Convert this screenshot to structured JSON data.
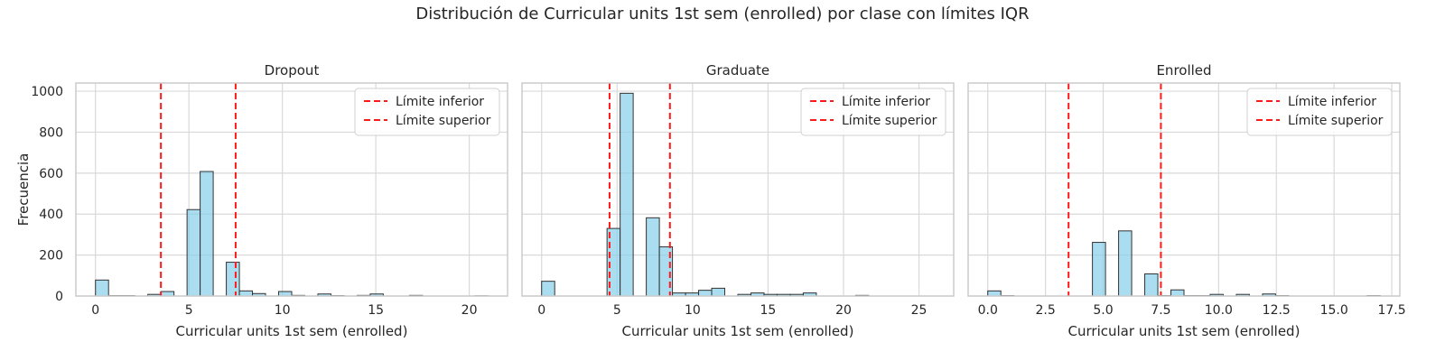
{
  "figure": {
    "title": "Distribución de Curricular units 1st sem (enrolled) por clase con límites IQR",
    "ylabel": "Frecuencia"
  },
  "colors": {
    "bar_fill": "#87CEEB",
    "bar_edge": "#333333",
    "limit_line": "#ff1a1a",
    "grid": "#d9d9d9",
    "spine": "#cccccc"
  },
  "chart_data": [
    {
      "type": "bar",
      "title": "Dropout",
      "xlabel": "Curricular units 1st sem (enrolled)",
      "ylabel": "Frecuencia",
      "xlim": [
        -1.05,
        22.05
      ],
      "ylim": [
        0,
        1040
      ],
      "xticks": [
        0,
        5,
        10,
        15,
        20
      ],
      "xtick_labels": [
        "0",
        "5",
        "10",
        "15",
        "20"
      ],
      "yticks": [
        0,
        200,
        400,
        600,
        800,
        1000
      ],
      "ytick_labels": [
        "0",
        "200",
        "400",
        "600",
        "800",
        "1000"
      ],
      "bin_width": 0.7,
      "bins": [
        {
          "x": 0,
          "value": 78
        },
        {
          "x": 0.7,
          "value": 2
        },
        {
          "x": 1.4,
          "value": 2
        },
        {
          "x": 2.8,
          "value": 8
        },
        {
          "x": 3.5,
          "value": 22
        },
        {
          "x": 4.9,
          "value": 422
        },
        {
          "x": 5.6,
          "value": 608
        },
        {
          "x": 7.0,
          "value": 165
        },
        {
          "x": 7.7,
          "value": 25
        },
        {
          "x": 8.4,
          "value": 12
        },
        {
          "x": 9.8,
          "value": 22
        },
        {
          "x": 10.5,
          "value": 3
        },
        {
          "x": 11.9,
          "value": 10
        },
        {
          "x": 12.6,
          "value": 2
        },
        {
          "x": 14.0,
          "value": 3
        },
        {
          "x": 14.7,
          "value": 10
        },
        {
          "x": 16.8,
          "value": 3
        },
        {
          "x": 20.3,
          "value": 1
        }
      ],
      "limits": [
        {
          "name": "Límite inferior",
          "value": 3.5
        },
        {
          "name": "Límite superior",
          "value": 7.5
        }
      ],
      "legend": "top-right",
      "grid": true
    },
    {
      "type": "bar",
      "title": "Graduate",
      "xlabel": "Curricular units 1st sem (enrolled)",
      "ylabel": "",
      "xlim": [
        -1.3,
        27.3
      ],
      "ylim": [
        0,
        1040
      ],
      "xticks": [
        0,
        5,
        10,
        15,
        20,
        25
      ],
      "xtick_labels": [
        "0",
        "5",
        "10",
        "15",
        "20",
        "25"
      ],
      "yticks": [
        0,
        200,
        400,
        600,
        800,
        1000
      ],
      "ytick_labels": [
        "",
        "",
        "",
        "",
        "",
        ""
      ],
      "bin_width": 0.8667,
      "bins": [
        {
          "x": 0,
          "value": 72
        },
        {
          "x": 4.3333,
          "value": 330
        },
        {
          "x": 5.2,
          "value": 990
        },
        {
          "x": 6.9333,
          "value": 382
        },
        {
          "x": 7.8,
          "value": 240
        },
        {
          "x": 8.6667,
          "value": 15
        },
        {
          "x": 9.5333,
          "value": 15
        },
        {
          "x": 10.4,
          "value": 28
        },
        {
          "x": 11.2667,
          "value": 38
        },
        {
          "x": 13.0,
          "value": 8
        },
        {
          "x": 13.8667,
          "value": 15
        },
        {
          "x": 14.7333,
          "value": 8
        },
        {
          "x": 15.6,
          "value": 8
        },
        {
          "x": 16.4667,
          "value": 8
        },
        {
          "x": 17.3333,
          "value": 15
        },
        {
          "x": 20.8,
          "value": 3
        }
      ],
      "limits": [
        {
          "name": "Límite inferior",
          "value": 4.5
        },
        {
          "name": "Límite superior",
          "value": 8.5
        }
      ],
      "legend": "top-right",
      "grid": true
    },
    {
      "type": "bar",
      "title": "Enrolled",
      "xlabel": "Curricular units 1st sem (enrolled)",
      "ylabel": "",
      "xlim": [
        -0.85,
        17.85
      ],
      "ylim": [
        0,
        1040
      ],
      "xticks": [
        0,
        2.5,
        5,
        7.5,
        10,
        12.5,
        15,
        17.5
      ],
      "xtick_labels": [
        "0.0",
        "2.5",
        "5.0",
        "7.5",
        "10.0",
        "12.5",
        "15.0",
        "17.5"
      ],
      "yticks": [
        0,
        200,
        400,
        600,
        800,
        1000
      ],
      "ytick_labels": [
        "",
        "",
        "",
        "",
        "",
        ""
      ],
      "bin_width": 0.5667,
      "bins": [
        {
          "x": 0,
          "value": 25
        },
        {
          "x": 0.5667,
          "value": 2
        },
        {
          "x": 4.5333,
          "value": 262
        },
        {
          "x": 5.6667,
          "value": 318
        },
        {
          "x": 6.8,
          "value": 108
        },
        {
          "x": 7.3667,
          "value": 2
        },
        {
          "x": 7.9333,
          "value": 30
        },
        {
          "x": 8.5,
          "value": 2
        },
        {
          "x": 9.0667,
          "value": 2
        },
        {
          "x": 9.6333,
          "value": 8
        },
        {
          "x": 10.7667,
          "value": 8
        },
        {
          "x": 11.9,
          "value": 10
        },
        {
          "x": 12.4667,
          "value": 2
        },
        {
          "x": 16.4333,
          "value": 2
        }
      ],
      "limits": [
        {
          "name": "Límite inferior",
          "value": 3.5
        },
        {
          "name": "Límite superior",
          "value": 7.5
        }
      ],
      "legend": "top-right",
      "grid": true
    }
  ]
}
